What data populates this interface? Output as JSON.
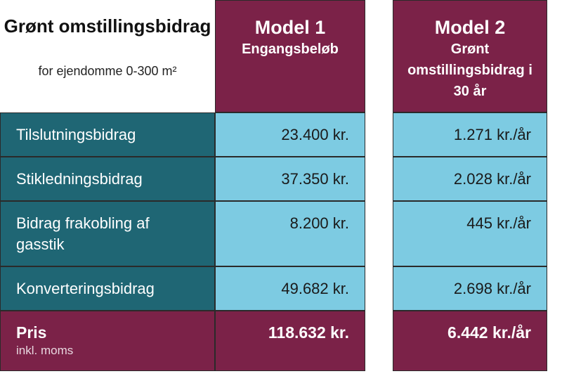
{
  "title": {
    "main": "Grønt omstillingsbidrag",
    "subtitle": "for ejendomme 0-300 m²"
  },
  "columns": [
    {
      "title": "Model 1",
      "subtitle": "Engangsbeløb"
    },
    {
      "title": "Model 2",
      "subtitle": "Grønt omstillingsbidrag i 30 år"
    }
  ],
  "rows": [
    {
      "label": "Tilslutningsbidrag",
      "model1": "23.400 kr.",
      "model2": "1.271 kr./år"
    },
    {
      "label": "Stikledningsbidrag",
      "model1": "37.350 kr.",
      "model2": "2.028 kr./år"
    },
    {
      "label": "Bidrag frakobling af gasstik",
      "model1": "8.200 kr.",
      "model2": "445 kr./år"
    },
    {
      "label": "Konverteringsbidrag",
      "model1": "49.682 kr.",
      "model2": "2.698 kr./år"
    }
  ],
  "total": {
    "label": "Pris",
    "sublabel": "inkl. moms",
    "model1": "118.632 kr.",
    "model2": "6.442 kr./år"
  },
  "colors": {
    "plum": "#7b2248",
    "teal": "#1f6674",
    "sky": "#7dcbe2"
  }
}
